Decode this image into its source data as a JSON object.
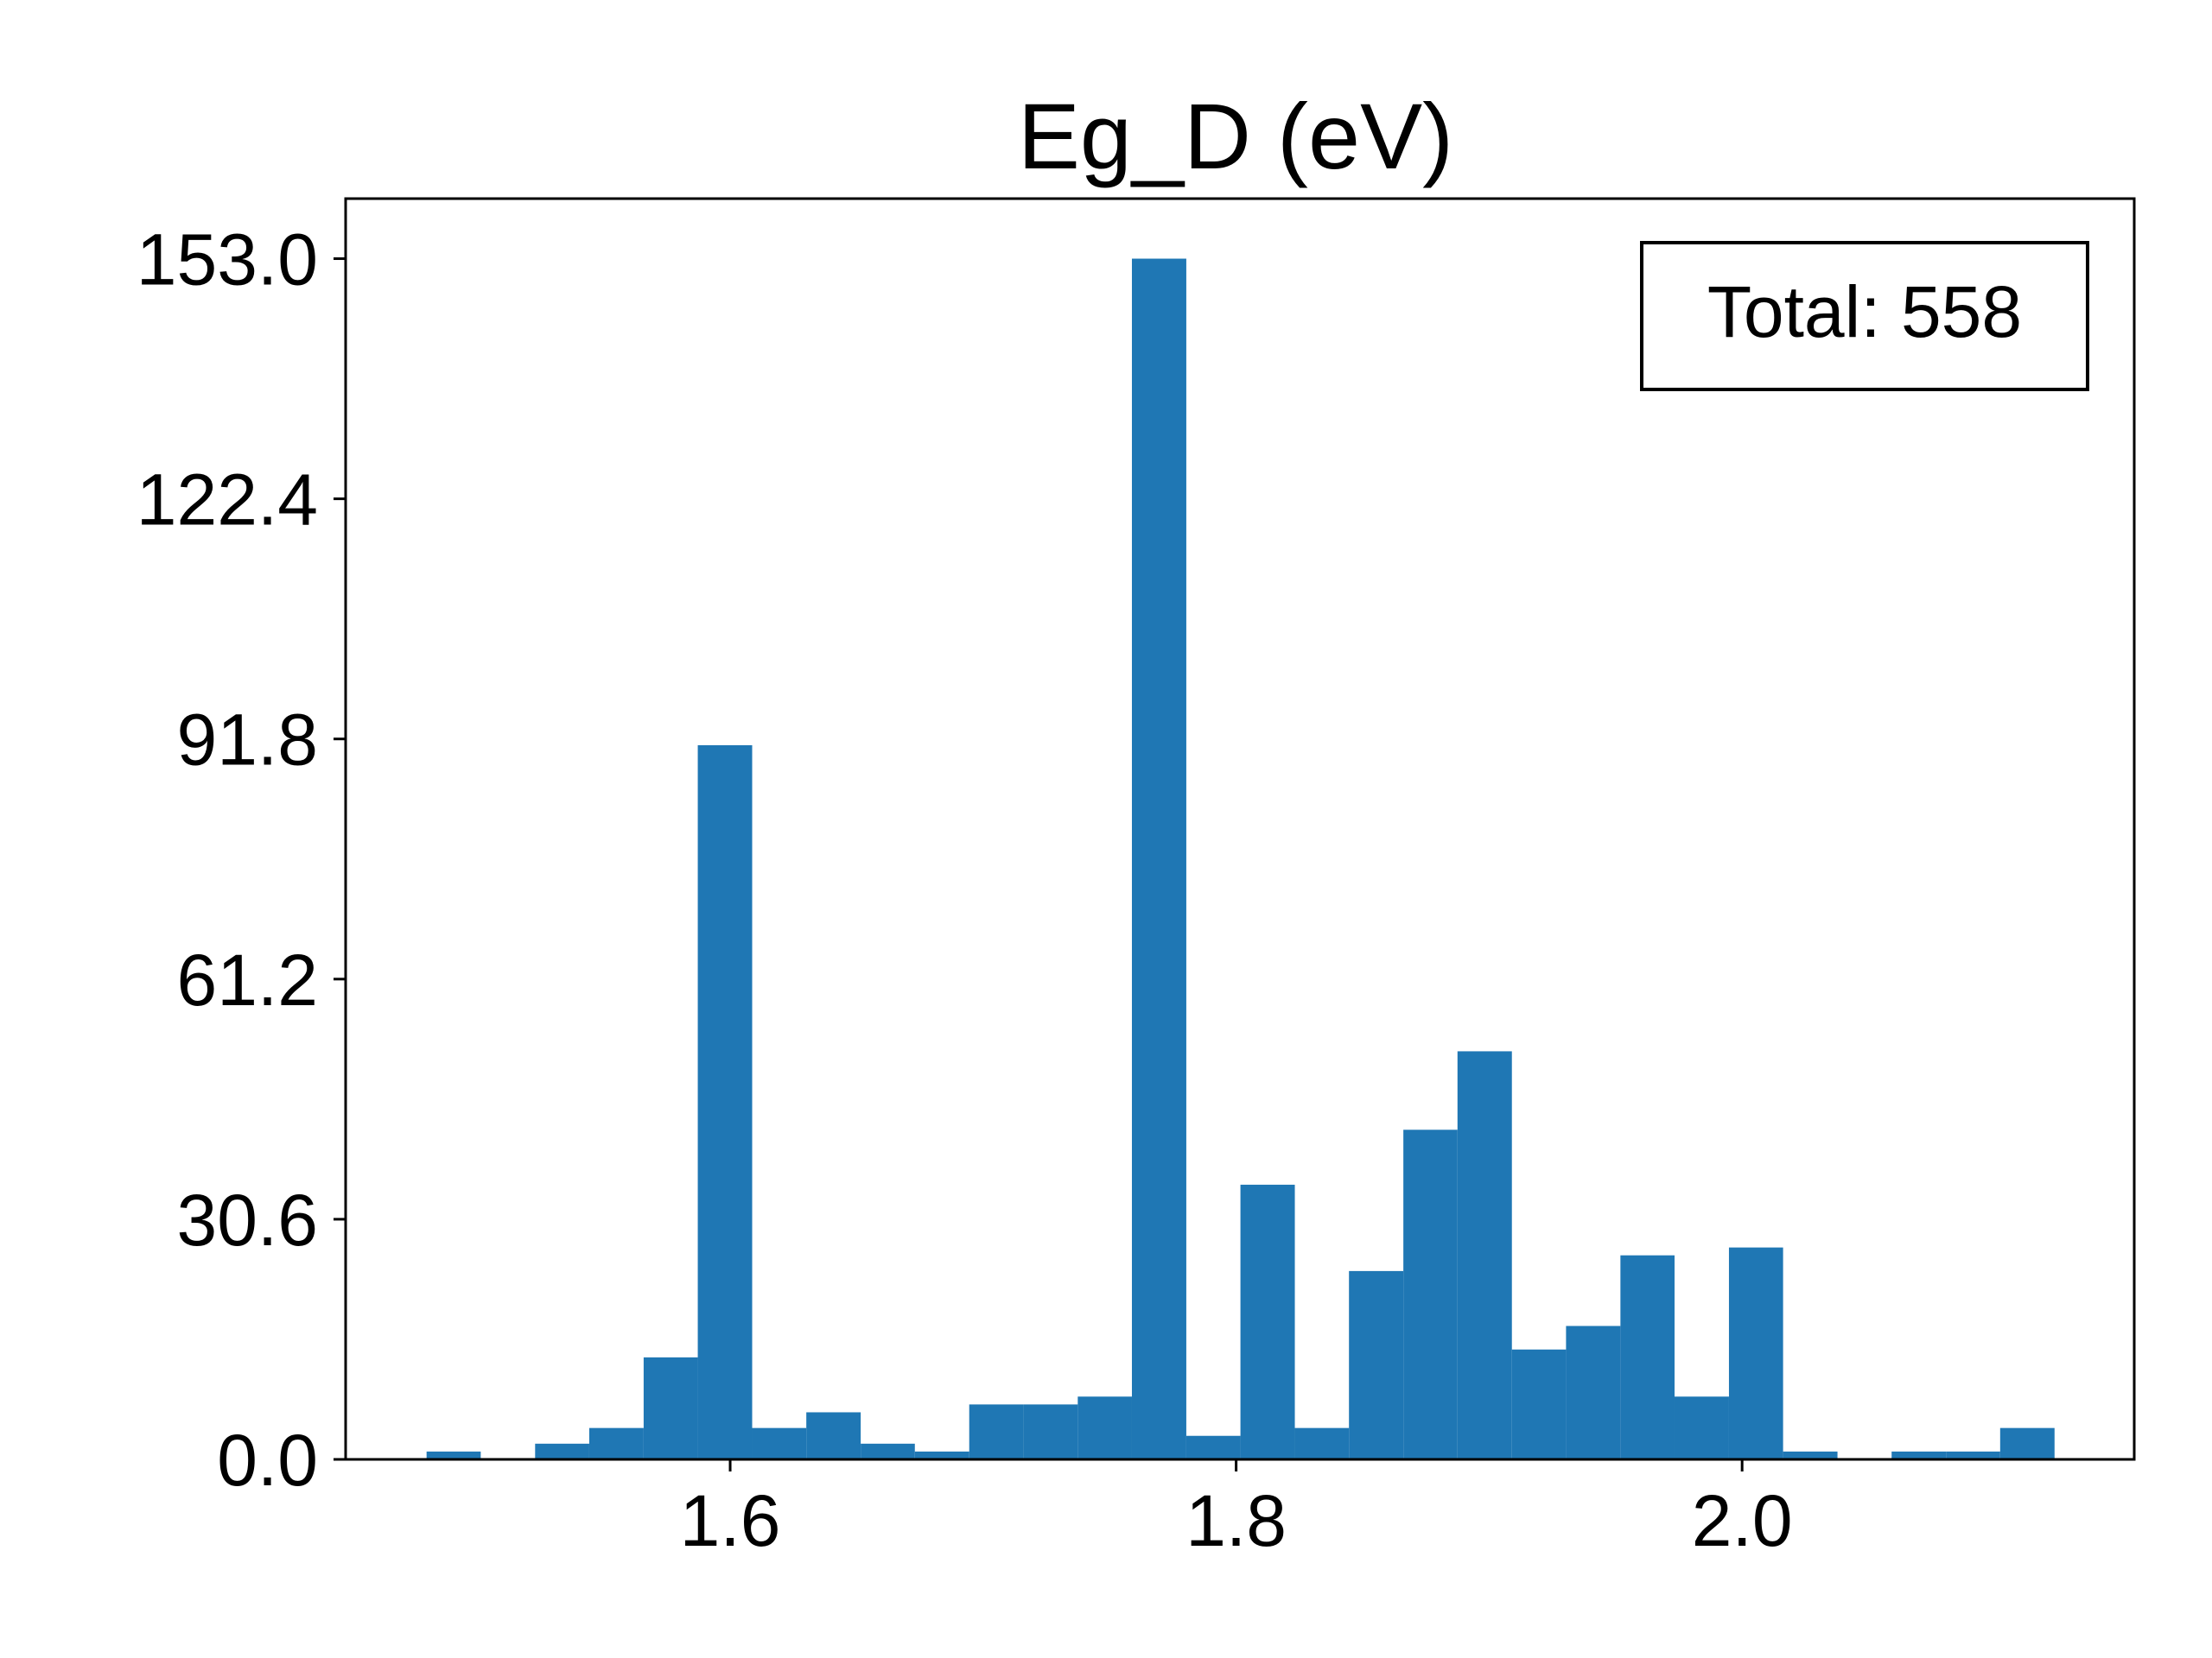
{
  "chart_data": {
    "type": "bar",
    "title": "Eg_D (eV)",
    "xlabel": "",
    "ylabel": "",
    "bar_color": "#1f77b4",
    "xlim": [
      1.448,
      2.155
    ],
    "ylim": [
      0,
      160.65
    ],
    "x_ticks": [
      {
        "value": 1.6,
        "label": "1.6"
      },
      {
        "value": 1.8,
        "label": "1.8"
      },
      {
        "value": 2.0,
        "label": "2.0"
      }
    ],
    "y_ticks": [
      {
        "value": 0.0,
        "label": "0.0"
      },
      {
        "value": 30.6,
        "label": "30.6"
      },
      {
        "value": 61.2,
        "label": "61.2"
      },
      {
        "value": 91.8,
        "label": "91.8"
      },
      {
        "value": 122.4,
        "label": "122.4"
      },
      {
        "value": 153.0,
        "label": "153.0"
      }
    ],
    "bin_edges": [
      1.48,
      1.5014,
      1.5229,
      1.5443,
      1.5658,
      1.5872,
      1.6087,
      1.6301,
      1.6516,
      1.673,
      1.6945,
      1.7159,
      1.7374,
      1.7588,
      1.7803,
      1.8017,
      1.8232,
      1.8446,
      1.8661,
      1.8875,
      1.909,
      1.9304,
      1.9519,
      1.9733,
      1.9948,
      2.0162,
      2.0377,
      2.0591,
      2.0806,
      2.102,
      2.1235
    ],
    "values": [
      1,
      0,
      2,
      4,
      13,
      91,
      4,
      6,
      2,
      1,
      7,
      7,
      8,
      153,
      3,
      35,
      4,
      24,
      42,
      52,
      14,
      17,
      26,
      8,
      27,
      1,
      0,
      1,
      1,
      4
    ],
    "annotation": "Total: 558",
    "grid": false
  }
}
